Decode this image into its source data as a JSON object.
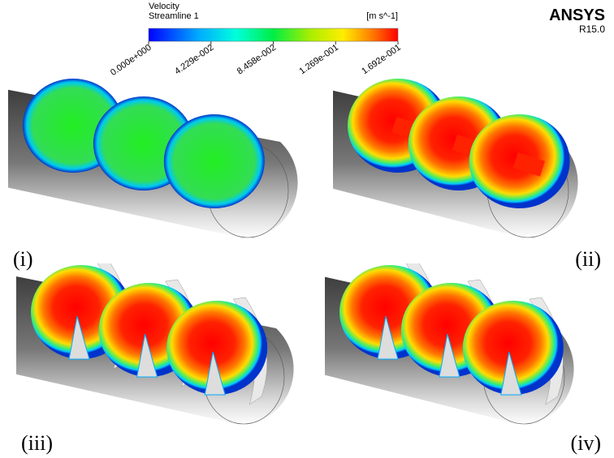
{
  "legend": {
    "title": "Velocity",
    "subtitle": "Streamline 1",
    "unit": "[m s^-1]",
    "range": [
      0,
      0.1692
    ],
    "ticks": [
      {
        "value": 0,
        "label": "0.000e+000"
      },
      {
        "value": 0.04229,
        "label": "4.229e-002"
      },
      {
        "value": 0.08458,
        "label": "8.458e-002"
      },
      {
        "value": 0.1269,
        "label": "1.269e-001"
      },
      {
        "value": 0.1692,
        "label": "1.692e-001"
      }
    ]
  },
  "logo": {
    "name": "ANSYS",
    "version": "R15.0"
  },
  "panels": [
    {
      "label": "(i)"
    },
    {
      "label": "(ii)"
    },
    {
      "label": "(iii)"
    },
    {
      "label": "(iv)"
    }
  ]
}
